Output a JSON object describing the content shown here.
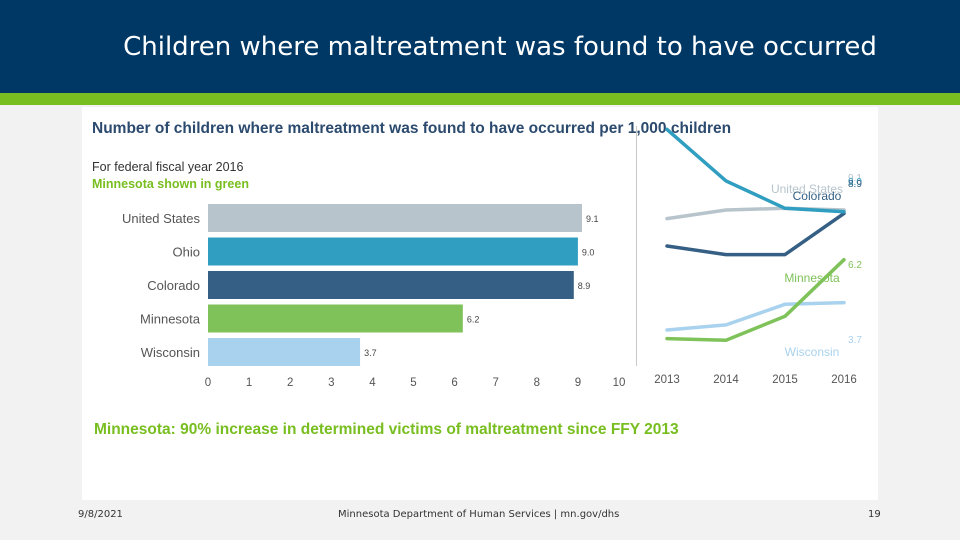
{
  "slide": {
    "title": "Children where maltreatment was found to have occurred",
    "date": "9/8/2021",
    "footer_text": "Minnesota Department of Human Services  |  mn.gov/dhs",
    "page_number": "19"
  },
  "colors": {
    "header": "#003865",
    "accent_green": "#78be20",
    "united_states": "#b7c4cc",
    "ohio": "#2f9ec0",
    "colorado": "#355f84",
    "minnesota": "#7fc25a",
    "wisconsin": "#a9d2ee"
  },
  "chart_data": [
    {
      "type": "bar",
      "orientation": "horizontal",
      "title": "Number of children where maltreatment was found to have occurred per 1,000 children",
      "subtitle": "For federal fiscal year 2016",
      "note": "Minnesota shown in green",
      "categories": [
        "United States",
        "Ohio",
        "Colorado",
        "Minnesota",
        "Wisconsin"
      ],
      "values": [
        9.1,
        9.0,
        8.9,
        6.2,
        3.7
      ],
      "value_labels": [
        "9.1",
        "9.0",
        "8.9",
        "6.2",
        "3.7"
      ],
      "xlim": [
        0,
        10
      ],
      "ticks": [
        "0",
        "1",
        "2",
        "3",
        "4",
        "5",
        "6",
        "7",
        "8",
        "9",
        "10"
      ]
    },
    {
      "type": "line",
      "x": [
        "2013",
        "2014",
        "2015",
        "2016"
      ],
      "ylim": [
        0,
        14
      ],
      "series": [
        {
          "name": "United States",
          "values": [
            8.6,
            9.1,
            9.2,
            9.1
          ],
          "end_label": "9.1"
        },
        {
          "name": "Ohio",
          "values": [
            13.8,
            10.8,
            9.2,
            9.0
          ],
          "end_label": "9.0"
        },
        {
          "name": "Colorado",
          "values": [
            7.0,
            6.5,
            6.5,
            8.9
          ],
          "end_label": "8.9"
        },
        {
          "name": "Minnesota",
          "values": [
            1.6,
            1.5,
            2.9,
            6.2
          ],
          "end_label": "6.2"
        },
        {
          "name": "Wisconsin",
          "values": [
            2.1,
            2.4,
            3.6,
            3.7
          ],
          "end_label": "3.7"
        }
      ],
      "footnote": "Minnesota: 90% increase in determined victims of maltreatment since FFY 2013"
    }
  ]
}
